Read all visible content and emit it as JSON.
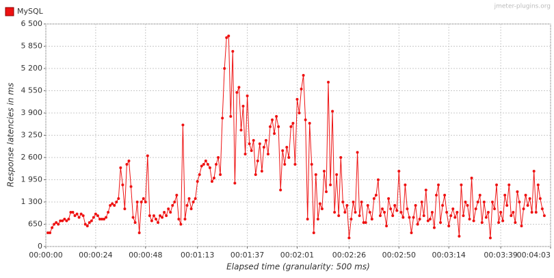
{
  "chart_data": {
    "type": "line",
    "watermark": "jmeter-plugins.org",
    "xlabel": "Elapsed time (granularity: 500 ms)",
    "ylabel": "Response latencies in ms",
    "grid": true,
    "legend": "top-left",
    "xlim": [
      0,
      243
    ],
    "ylim": [
      0,
      6500
    ],
    "xticks": [
      {
        "value": 0,
        "label": "00:00:00"
      },
      {
        "value": 24,
        "label": "00:00:24"
      },
      {
        "value": 48,
        "label": "00:00:48"
      },
      {
        "value": 73,
        "label": "00:01:13"
      },
      {
        "value": 97,
        "label": "00:01:37"
      },
      {
        "value": 121,
        "label": "00:02:01"
      },
      {
        "value": 146,
        "label": "00:02:26"
      },
      {
        "value": 170,
        "label": "00:02:50"
      },
      {
        "value": 194,
        "label": "00:03:14"
      },
      {
        "value": 219,
        "label": "00:03:39"
      },
      {
        "value": 243,
        "label": "00:04:03"
      }
    ],
    "yticks": [
      0,
      650,
      {
        "value": 1300,
        "label": "1 300"
      },
      {
        "value": 1950,
        "label": "1 950"
      },
      {
        "value": 2600,
        "label": "2 600"
      },
      {
        "value": 3250,
        "label": "3 250"
      },
      {
        "value": 3900,
        "label": "3 900"
      },
      {
        "value": 4550,
        "label": "4 550"
      },
      {
        "value": 5200,
        "label": "5 200"
      },
      {
        "value": 5850,
        "label": "5 850"
      },
      {
        "value": 6500,
        "label": "6 500"
      }
    ],
    "x": [
      1,
      2,
      3,
      4,
      5,
      6,
      7,
      8,
      9,
      10,
      11,
      12,
      13,
      14,
      15,
      16,
      17,
      18,
      19,
      20,
      21,
      22,
      23,
      24,
      25,
      26,
      27,
      28,
      29,
      30,
      31,
      32,
      33,
      34,
      35,
      36,
      37,
      38,
      39,
      40,
      41,
      42,
      43,
      44,
      45,
      46,
      47,
      48,
      49,
      50,
      51,
      52,
      53,
      54,
      55,
      56,
      57,
      58,
      59,
      60,
      61,
      62,
      63,
      64,
      65,
      66,
      67,
      68,
      69,
      70,
      71,
      72,
      73,
      74,
      75,
      76,
      77,
      78,
      79,
      80,
      81,
      82,
      83,
      84,
      85,
      86,
      87,
      88,
      89,
      90,
      91,
      92,
      93,
      94,
      95,
      96,
      97,
      98,
      99,
      100,
      101,
      102,
      103,
      104,
      105,
      106,
      107,
      108,
      109,
      110,
      111,
      112,
      113,
      114,
      115,
      116,
      117,
      118,
      119,
      120,
      121,
      122,
      123,
      124,
      125,
      126,
      127,
      128,
      129,
      130,
      131,
      132,
      133,
      134,
      135,
      136,
      137,
      138,
      139,
      140,
      141,
      142,
      143,
      144,
      145,
      146,
      147,
      148,
      149,
      150,
      151,
      152,
      153,
      154,
      155,
      156,
      157,
      158,
      159,
      160,
      161,
      162,
      163,
      164,
      165,
      166,
      167,
      168,
      169,
      170,
      171,
      172,
      173,
      174,
      175,
      176,
      177,
      178,
      179,
      180,
      181,
      182,
      183,
      184,
      185,
      186,
      187,
      188,
      189,
      190,
      191,
      192,
      193,
      194,
      195,
      196,
      197,
      198,
      199,
      200,
      201,
      202,
      203,
      204,
      205,
      206,
      207,
      208,
      209,
      210,
      211,
      212,
      213,
      214,
      215,
      216,
      217,
      218,
      219,
      220,
      221,
      222,
      223,
      224,
      225,
      226,
      227,
      228,
      229,
      230,
      231,
      232,
      233,
      234,
      235,
      236,
      237,
      238,
      239,
      240
    ],
    "series": [
      {
        "name": "MySQL",
        "color": "#ee1111",
        "values": [
          400,
          400,
          550,
          650,
          700,
          650,
          750,
          750,
          800,
          750,
          800,
          1000,
          1000,
          900,
          950,
          850,
          950,
          900,
          650,
          600,
          700,
          750,
          850,
          950,
          900,
          800,
          800,
          800,
          850,
          1000,
          1200,
          1250,
          1200,
          1300,
          1400,
          2300,
          1800,
          1100,
          2400,
          2500,
          1750,
          850,
          700,
          1300,
          400,
          1300,
          1400,
          1300,
          2650,
          900,
          750,
          900,
          800,
          700,
          900,
          850,
          1000,
          900,
          1100,
          1000,
          1200,
          1300,
          1500,
          800,
          650,
          3550,
          800,
          1200,
          1400,
          1100,
          1300,
          1400,
          1900,
          2100,
          2350,
          2400,
          2500,
          2400,
          2300,
          1900,
          2000,
          2400,
          2600,
          2100,
          3750,
          5200,
          6100,
          6150,
          3800,
          5700,
          1850,
          4500,
          4650,
          3400,
          4100,
          2700,
          4400,
          3000,
          2800,
          3100,
          2100,
          2500,
          3000,
          2200,
          2900,
          3100,
          2700,
          3500,
          3700,
          3300,
          3800,
          3500,
          1650,
          2800,
          2400,
          2900,
          2600,
          3500,
          3600,
          2400,
          4300,
          3900,
          4600,
          5000,
          3700,
          800,
          3600,
          2400,
          400,
          2100,
          800,
          1250,
          1100,
          2200,
          1600,
          4800,
          1800,
          3950,
          1000,
          2100,
          900,
          2600,
          1300,
          1000,
          1200,
          250,
          800,
          1300,
          1000,
          2750,
          900,
          1300,
          700,
          700,
          1200,
          1000,
          800,
          1400,
          1500,
          1950,
          900,
          1100,
          1000,
          600,
          1400,
          1100,
          900,
          1200,
          1050,
          2200,
          1000,
          850,
          1800,
          1100,
          850,
          400,
          850,
          1200,
          650,
          800,
          1300,
          900,
          1650,
          750,
          800,
          1000,
          550,
          1500,
          1800,
          700,
          1200,
          1500,
          1000,
          600,
          900,
          1100,
          850,
          1000,
          300,
          1800,
          900,
          1300,
          1200,
          800,
          2000,
          750,
          1100,
          1300,
          1500,
          700,
          1300,
          850,
          1000,
          250,
          1300,
          1100,
          1800,
          700,
          1000,
          750,
          1500,
          1200,
          1800,
          900,
          1000,
          700,
          1600,
          1300,
          600,
          1100,
          1500,
          1200,
          1400,
          1000,
          2200,
          1000,
          1800,
          1400,
          1100,
          900
        ]
      }
    ]
  }
}
